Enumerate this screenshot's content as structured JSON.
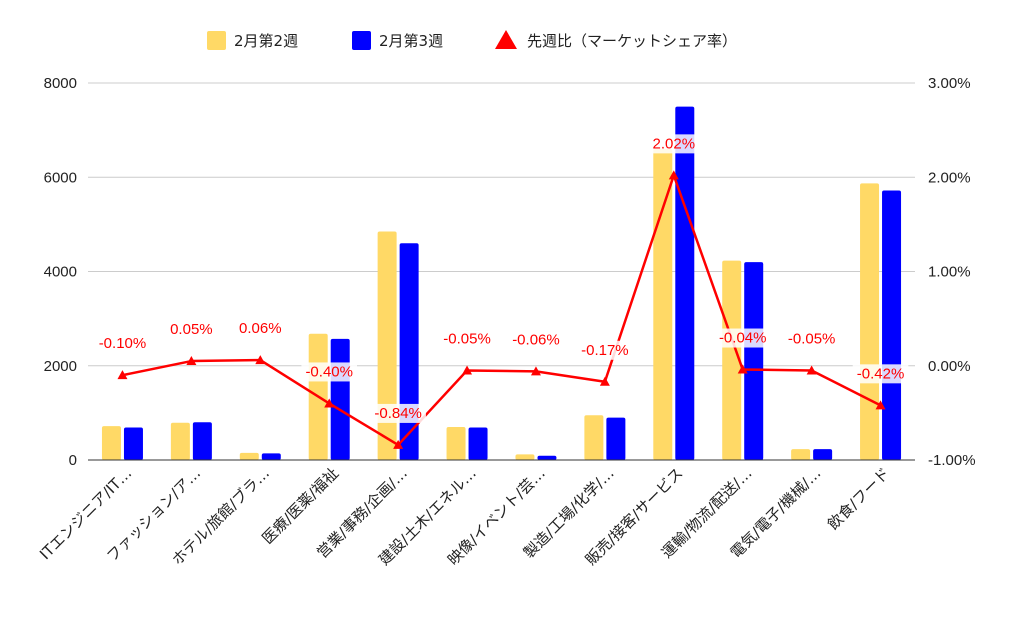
{
  "chart_data": {
    "type": "bar",
    "title": "",
    "categories": [
      "ITエンジニア/IT…",
      "ファッション/ア…",
      "ホテル/旅館/ブラ…",
      "医療/医薬/福祉",
      "営業/事務/企画/…",
      "建設/土木/エネル…",
      "映像/イベント/芸…",
      "製造/工場/化学/…",
      "販売/接客/サービス",
      "運輸/物流/配送/…",
      "電気/電子/機械/…",
      "飲食/フード"
    ],
    "series": [
      {
        "name": "2月第2週",
        "type": "bar",
        "axis": "left",
        "color": "#ffd966",
        "values": [
          720,
          790,
          150,
          2680,
          4850,
          700,
          120,
          950,
          6600,
          4230,
          230,
          5870
        ]
      },
      {
        "name": "2月第3週",
        "type": "bar",
        "axis": "left",
        "color": "#0000ff",
        "values": [
          690,
          800,
          140,
          2570,
          4600,
          690,
          90,
          900,
          7500,
          4200,
          230,
          5720
        ]
      },
      {
        "name": "先週比（マーケットシェア率）",
        "type": "line",
        "axis": "right",
        "color": "#ff0000",
        "values": [
          -0.1,
          0.05,
          0.06,
          -0.4,
          -0.84,
          -0.05,
          -0.06,
          -0.17,
          2.02,
          -0.04,
          -0.05,
          -0.42
        ],
        "labels": [
          "-0.10%",
          "0.05%",
          "0.06%",
          "-0.40%",
          "-0.84%",
          "-0.05%",
          "-0.06%",
          "-0.17%",
          "2.02%",
          "-0.04%",
          "-0.05%",
          "-0.42%"
        ]
      }
    ],
    "y_left": {
      "ylim": [
        0,
        8000
      ],
      "ticks": [
        "0",
        "2000",
        "4000",
        "6000",
        "8000"
      ]
    },
    "y_right": {
      "ylim": [
        -1.0,
        3.0
      ],
      "ticks": [
        "-1.00%",
        "0.00%",
        "1.00%",
        "2.00%",
        "3.00%"
      ]
    },
    "grid": true,
    "legend": "top-center"
  }
}
